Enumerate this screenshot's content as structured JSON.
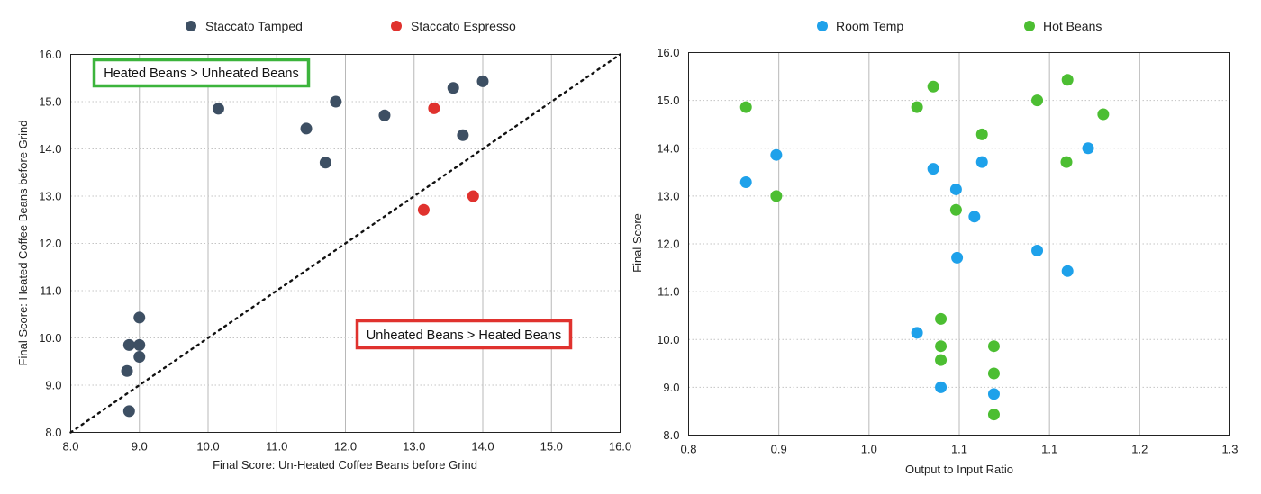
{
  "chart_data": [
    {
      "type": "scatter",
      "title": "",
      "xlabel": "Final Score: Un-Heated Coffee Beans before Grind",
      "ylabel": "Final Score: Heated Coffee Beans before Grind",
      "xlim": [
        8.0,
        16.0
      ],
      "ylim": [
        8.0,
        16.0
      ],
      "x_ticks": [
        "8.0",
        "9.0",
        "10.0",
        "11.0",
        "12.0",
        "13.0",
        "14.0",
        "15.0",
        "16.0"
      ],
      "y_ticks": [
        "8.0",
        "9.0",
        "10.0",
        "11.0",
        "12.0",
        "13.0",
        "14.0",
        "15.0",
        "16.0"
      ],
      "grid": "vertical solid, horizontal dotted",
      "legend_position": "top-center",
      "series": [
        {
          "name": "Staccato Tamped",
          "color": "#3d4f63",
          "points": [
            [
              8.85,
              8.45
            ],
            [
              8.82,
              9.3
            ],
            [
              8.85,
              9.85
            ],
            [
              9.0,
              9.85
            ],
            [
              9.0,
              9.6
            ],
            [
              9.0,
              10.43
            ],
            [
              10.15,
              14.85
            ],
            [
              11.43,
              14.43
            ],
            [
              11.71,
              13.71
            ],
            [
              11.86,
              15.0
            ],
            [
              12.57,
              14.71
            ],
            [
              13.57,
              15.29
            ],
            [
              13.71,
              14.29
            ],
            [
              14.0,
              15.43
            ]
          ]
        },
        {
          "name": "Staccato Espresso",
          "color": "#e0322e",
          "points": [
            [
              13.14,
              12.71
            ],
            [
              13.29,
              14.86
            ],
            [
              13.86,
              13.0
            ]
          ]
        }
      ],
      "reference_line": {
        "from": [
          8.0,
          8.0
        ],
        "to": [
          16.0,
          16.0
        ],
        "style": "dotted",
        "color": "#111111"
      },
      "annotations": [
        {
          "text": "Heated Beans > Unheated Beans",
          "border_color": "#3cb43c"
        },
        {
          "text": "Unheated Beans > Heated Beans",
          "border_color": "#e0322e"
        }
      ]
    },
    {
      "type": "scatter",
      "title": "",
      "xlabel": "Output to Input Ratio",
      "ylabel": "Final Score",
      "xlim": [
        0.8,
        1.3
      ],
      "ylim": [
        8.0,
        16.0
      ],
      "x_ticks": [
        "0.8",
        "0.9",
        "1.0",
        "1.1",
        "1.1",
        "1.2",
        "1.3"
      ],
      "y_ticks": [
        "8.0",
        "9.0",
        "10.0",
        "11.0",
        "12.0",
        "13.0",
        "14.0",
        "15.0",
        "16.0"
      ],
      "grid": "vertical solid, horizontal dotted",
      "legend_position": "top-center",
      "series": [
        {
          "name": "Room Temp",
          "color": "#1ea1ea",
          "points": [
            [
              0.853,
              13.29
            ],
            [
              0.881,
              13.86
            ],
            [
              1.011,
              10.14
            ],
            [
              1.026,
              13.57
            ],
            [
              1.033,
              9.0
            ],
            [
              1.047,
              13.14
            ],
            [
              1.048,
              11.71
            ],
            [
              1.064,
              12.57
            ],
            [
              1.071,
              13.71
            ],
            [
              1.082,
              8.86
            ],
            [
              1.122,
              11.86
            ],
            [
              1.15,
              11.43
            ],
            [
              1.169,
              14.0
            ]
          ]
        },
        {
          "name": "Hot Beans",
          "color": "#4cbe32",
          "points": [
            [
              0.853,
              14.86
            ],
            [
              0.881,
              13.0
            ],
            [
              1.011,
              14.86
            ],
            [
              1.026,
              15.29
            ],
            [
              1.033,
              10.43
            ],
            [
              1.033,
              9.86
            ],
            [
              1.033,
              9.57
            ],
            [
              1.047,
              12.71
            ],
            [
              1.071,
              14.29
            ],
            [
              1.082,
              9.86
            ],
            [
              1.082,
              9.29
            ],
            [
              1.082,
              8.43
            ],
            [
              1.122,
              15.0
            ],
            [
              1.149,
              13.71
            ],
            [
              1.15,
              15.43
            ],
            [
              1.183,
              14.71
            ]
          ]
        }
      ]
    }
  ]
}
